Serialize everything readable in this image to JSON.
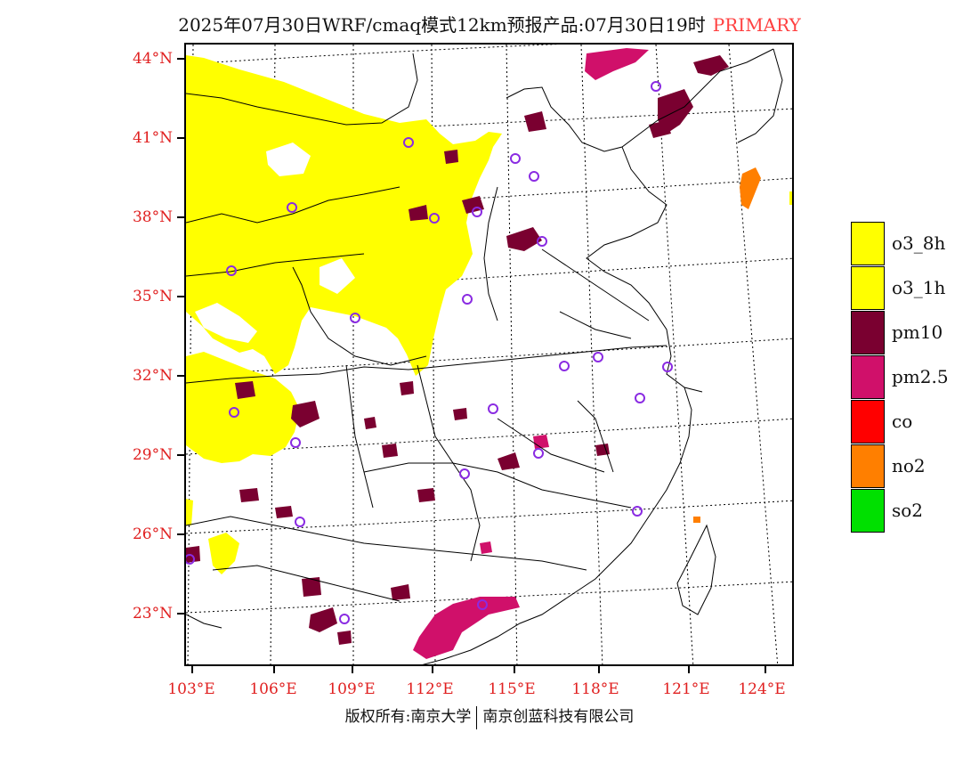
{
  "header": {
    "title": "2025年07月30日WRF/cmaq模式12km预报产品:07月30日19时",
    "badge": "PRIMARY"
  },
  "axes": {
    "lat_labels": [
      "44°N",
      "41°N",
      "38°N",
      "35°N",
      "32°N",
      "29°N",
      "26°N",
      "23°N"
    ],
    "lon_labels": [
      "103°E",
      "106°E",
      "109°E",
      "112°E",
      "115°E",
      "118°E",
      "121°E",
      "124°E"
    ]
  },
  "legend": {
    "items": [
      {
        "label": "o3_8h",
        "color": "#ffff00"
      },
      {
        "label": "o3_1h",
        "color": "#ffff00"
      },
      {
        "label": "pm10",
        "color": "#7a0030"
      },
      {
        "label": "pm2.5",
        "color": "#d0106a"
      },
      {
        "label": "co",
        "color": "#ff0000"
      },
      {
        "label": "no2",
        "color": "#ff7f00"
      },
      {
        "label": "so2",
        "color": "#00e000"
      }
    ]
  },
  "footer": {
    "left": "版权所有:南京大学",
    "right": "南京创蓝科技有限公司"
  },
  "colors": {
    "axis_label": "#e02020",
    "badge": "#ff4040",
    "station_marker": "#8a2be2"
  }
}
